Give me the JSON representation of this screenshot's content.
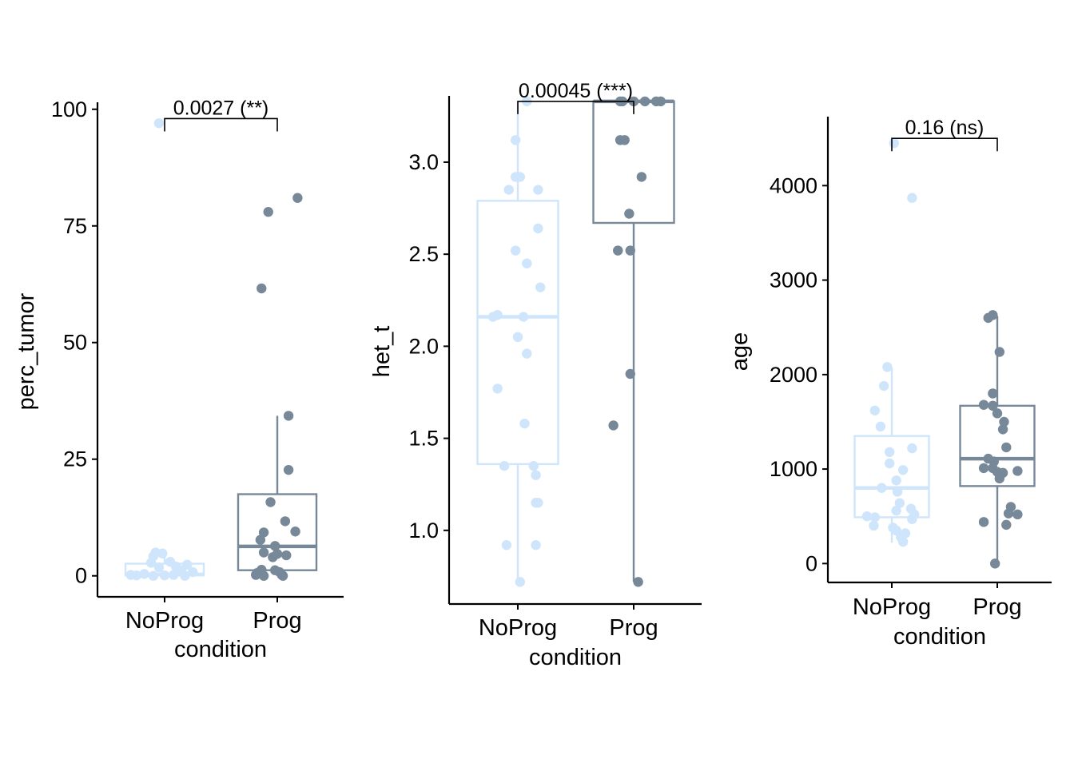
{
  "colors": {
    "NoProg": "#CFE5FB",
    "Prog": "#778899",
    "axis": "#000000",
    "background": "#FFFFFF"
  },
  "chart_data": [
    {
      "type": "box",
      "xlabel": "condition",
      "ylabel": "perc_tumor",
      "categories": [
        "NoProg",
        "Prog"
      ],
      "yticks": [
        0,
        25,
        50,
        75,
        100
      ],
      "ytick_labels": [
        "0",
        "25",
        "50",
        "75",
        "100"
      ],
      "ylim": [
        -4.5,
        101.5
      ],
      "grid": false,
      "legend": "none",
      "annotation": "0.0027 (**)",
      "bracket_y": 98,
      "series": [
        {
          "name": "NoProg",
          "box": {
            "q1": 0.1,
            "median": 0.3,
            "q3": 2.6,
            "whisker_low": 0,
            "whisker_high": 5
          },
          "points": [
            [
              -0.05,
              97
            ],
            [
              -0.08,
              5.0
            ],
            [
              -0.02,
              4.8
            ],
            [
              -0.1,
              4.2
            ],
            [
              0.05,
              3.0
            ],
            [
              -0.12,
              2.8
            ],
            [
              0.2,
              2.4
            ],
            [
              0.1,
              2.0
            ],
            [
              -0.05,
              1.8
            ],
            [
              0.15,
              1.2
            ],
            [
              0.25,
              0.8
            ],
            [
              -0.18,
              0.4
            ],
            [
              -0.3,
              0.2
            ],
            [
              0.08,
              0.2
            ],
            [
              0.0,
              0.1
            ],
            [
              -0.25,
              0.1
            ],
            [
              0.18,
              0.0
            ],
            [
              -0.1,
              0.0
            ]
          ]
        },
        {
          "name": "Prog",
          "box": {
            "q1": 1.2,
            "median": 6.3,
            "q3": 17.5,
            "whisker_low": 0,
            "whisker_high": 34.3
          },
          "points": [
            [
              0.18,
              81
            ],
            [
              -0.08,
              78
            ],
            [
              -0.14,
              61.6
            ],
            [
              0.1,
              34.3
            ],
            [
              0.1,
              22.7
            ],
            [
              -0.06,
              15.8
            ],
            [
              0.07,
              11.7
            ],
            [
              0.16,
              9.5
            ],
            [
              -0.12,
              9.3
            ],
            [
              -0.15,
              7.7
            ],
            [
              -0.02,
              6.4
            ],
            [
              0.0,
              4.7
            ],
            [
              -0.12,
              5.0
            ],
            [
              0.08,
              4.4
            ],
            [
              -0.04,
              4.0
            ],
            [
              -0.14,
              1.3
            ],
            [
              -0.02,
              1.2
            ],
            [
              0.02,
              0.8
            ],
            [
              -0.18,
              0.6
            ],
            [
              0.04,
              0.2
            ],
            [
              -0.12,
              0.0
            ],
            [
              0.05,
              0.0
            ],
            [
              -0.19,
              0.2
            ]
          ]
        }
      ]
    },
    {
      "type": "box",
      "xlabel": "condition",
      "ylabel": "het_t",
      "categories": [
        "NoProg",
        "Prog"
      ],
      "yticks": [
        1.0,
        1.5,
        2.0,
        2.5,
        3.0
      ],
      "ytick_labels": [
        "1.0",
        "1.5",
        "2.0",
        "2.5",
        "3.0"
      ],
      "ylim": [
        0.6,
        3.36
      ],
      "grid": false,
      "legend": "none",
      "annotation": "0.00045 (***)",
      "bracket_y": 3.33,
      "series": [
        {
          "name": "NoProg",
          "box": {
            "q1": 1.36,
            "median": 2.16,
            "q3": 2.79,
            "whisker_low": 0.72,
            "whisker_high": 3.33
          },
          "points": [
            [
              0.08,
              3.33
            ],
            [
              -0.02,
              3.12
            ],
            [
              -0.02,
              2.92
            ],
            [
              0.02,
              2.92
            ],
            [
              -0.08,
              2.85
            ],
            [
              0.18,
              2.85
            ],
            [
              0.18,
              2.64
            ],
            [
              -0.02,
              2.52
            ],
            [
              0.08,
              2.45
            ],
            [
              0.2,
              2.32
            ],
            [
              -0.18,
              2.17
            ],
            [
              -0.22,
              2.16
            ],
            [
              0.05,
              2.16
            ],
            [
              0.0,
              2.05
            ],
            [
              0.08,
              1.96
            ],
            [
              -0.18,
              1.77
            ],
            [
              0.06,
              1.58
            ],
            [
              -0.12,
              1.35
            ],
            [
              0.14,
              1.35
            ],
            [
              0.16,
              1.3
            ],
            [
              0.16,
              1.15
            ],
            [
              0.18,
              1.15
            ],
            [
              -0.1,
              0.92
            ],
            [
              0.16,
              0.92
            ],
            [
              0.02,
              0.72
            ]
          ]
        },
        {
          "name": "Prog",
          "box": {
            "q1": 2.67,
            "median": 3.33,
            "q3": 3.33,
            "whisker_low": 0.72,
            "whisker_high": 3.33
          },
          "points": [
            [
              -0.12,
              3.33
            ],
            [
              -0.1,
              3.33
            ],
            [
              0.0,
              3.33
            ],
            [
              0.1,
              3.33
            ],
            [
              0.2,
              3.33
            ],
            [
              0.24,
              3.33
            ],
            [
              -0.12,
              3.12
            ],
            [
              -0.08,
              3.12
            ],
            [
              0.07,
              2.92
            ],
            [
              -0.04,
              2.72
            ],
            [
              -0.14,
              2.52
            ],
            [
              -0.03,
              2.52
            ],
            [
              -0.03,
              1.85
            ],
            [
              -0.18,
              1.57
            ],
            [
              0.04,
              0.72
            ]
          ]
        }
      ]
    },
    {
      "type": "box",
      "xlabel": "condition",
      "ylabel": "age",
      "categories": [
        "NoProg",
        "Prog"
      ],
      "yticks": [
        0,
        1000,
        2000,
        3000,
        4000
      ],
      "ytick_labels": [
        "0",
        "1000",
        "2000",
        "3000",
        "4000"
      ],
      "ylim": [
        -200,
        4730
      ],
      "grid": false,
      "legend": "none",
      "annotation": "0.16 (ns)",
      "bracket_y": 4500,
      "series": [
        {
          "name": "NoProg",
          "box": {
            "q1": 490,
            "median": 800,
            "q3": 1350,
            "whisker_low": 220,
            "whisker_high": 2080
          },
          "points": [
            [
              0.02,
              4450
            ],
            [
              0.18,
              3870
            ],
            [
              -0.04,
              2080
            ],
            [
              -0.07,
              1880
            ],
            [
              -0.15,
              1620
            ],
            [
              -0.1,
              1450
            ],
            [
              0.18,
              1220
            ],
            [
              -0.02,
              1180
            ],
            [
              -0.02,
              1060
            ],
            [
              0.1,
              990
            ],
            [
              0.04,
              880
            ],
            [
              -0.09,
              800
            ],
            [
              0.05,
              760
            ],
            [
              0.07,
              640
            ],
            [
              0.17,
              580
            ],
            [
              0.04,
              560
            ],
            [
              0.2,
              520
            ],
            [
              -0.22,
              500
            ],
            [
              -0.15,
              490
            ],
            [
              0.18,
              470
            ],
            [
              -0.16,
              400
            ],
            [
              0.01,
              380
            ],
            [
              0.04,
              350
            ],
            [
              0.12,
              320
            ],
            [
              0.08,
              280
            ],
            [
              0.1,
              230
            ]
          ]
        },
        {
          "name": "Prog",
          "box": {
            "q1": 820,
            "median": 1110,
            "q3": 1670,
            "whisker_low": 0,
            "whisker_high": 2620
          },
          "points": [
            [
              -0.04,
              2630
            ],
            [
              -0.08,
              2600
            ],
            [
              0.02,
              2240
            ],
            [
              -0.04,
              1800
            ],
            [
              -0.12,
              1680
            ],
            [
              -0.04,
              1670
            ],
            [
              0.0,
              1590
            ],
            [
              0.06,
              1500
            ],
            [
              0.05,
              1420
            ],
            [
              0.08,
              1230
            ],
            [
              -0.08,
              1110
            ],
            [
              -0.03,
              1080
            ],
            [
              -0.04,
              1010
            ],
            [
              -0.12,
              1010
            ],
            [
              0.0,
              970
            ],
            [
              0.05,
              960
            ],
            [
              0.18,
              980
            ],
            [
              0.02,
              900
            ],
            [
              0.12,
              600
            ],
            [
              0.1,
              530
            ],
            [
              0.18,
              520
            ],
            [
              -0.12,
              440
            ],
            [
              0.08,
              410
            ],
            [
              -0.02,
              0
            ]
          ]
        }
      ]
    }
  ]
}
